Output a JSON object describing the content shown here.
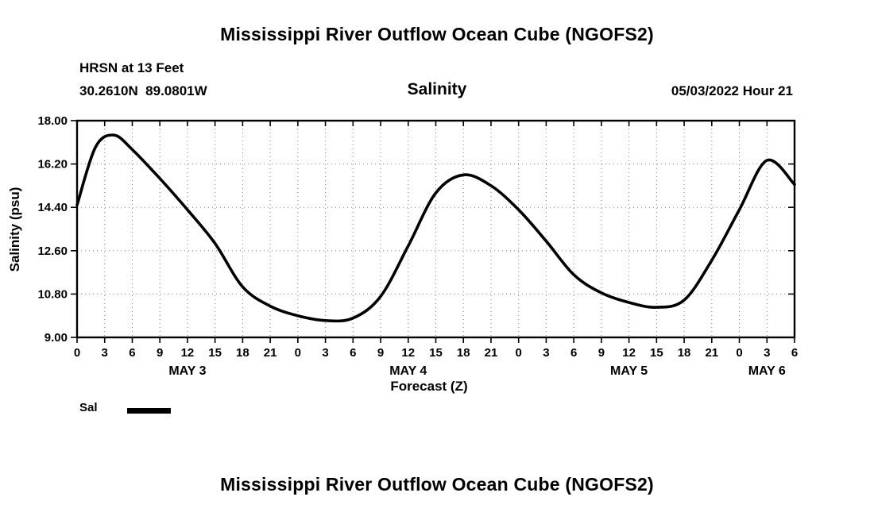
{
  "page": {
    "title_top": "Mississippi River Outflow Ocean Cube (NGOFS2)",
    "title_bottom": "Mississippi River Outflow Ocean Cube (NGOFS2)"
  },
  "header": {
    "station": "HRSN at 13 Feet",
    "coords": "30.2610N  89.0801W",
    "variable": "Salinity",
    "datetime": "05/03/2022 Hour 21"
  },
  "legend": {
    "sal_label": "Sal"
  },
  "chart_data": {
    "type": "line",
    "title": "Salinity",
    "xlabel": "Forecast (Z)",
    "ylabel": "Salinity (psu)",
    "ylim": [
      9.0,
      18.0
    ],
    "yticks": [
      18.0,
      16.2,
      14.4,
      12.6,
      10.8,
      9.0
    ],
    "ytick_labels": [
      "18.00",
      "16.20",
      "14.40",
      "12.60",
      "10.80",
      "9.00"
    ],
    "x_hours_span": 78,
    "xtick_interval": 3,
    "xtick_labels": [
      "0",
      "3",
      "6",
      "9",
      "12",
      "15",
      "18",
      "21",
      "0",
      "3",
      "6",
      "9",
      "12",
      "15",
      "18",
      "21",
      "0",
      "3",
      "6",
      "9",
      "12",
      "15",
      "18",
      "21",
      "0",
      "3",
      "6"
    ],
    "day_labels": [
      {
        "label": "MAY 3",
        "center_hour": 12
      },
      {
        "label": "MAY 4",
        "center_hour": 36
      },
      {
        "label": "MAY 5",
        "center_hour": 60
      },
      {
        "label": "MAY 6",
        "center_hour": 75
      }
    ],
    "grid": true,
    "legend_position": "bottom-left",
    "line_color": "#000000",
    "series": [
      {
        "name": "Sal",
        "x": [
          0,
          2,
          4,
          6,
          9,
          12,
          15,
          18,
          21,
          24,
          27,
          30,
          33,
          36,
          39,
          42,
          45,
          48,
          51,
          54,
          57,
          60,
          63,
          66,
          69,
          72,
          75,
          78
        ],
        "values": [
          14.5,
          16.9,
          17.4,
          16.8,
          15.6,
          14.3,
          12.9,
          11.1,
          10.3,
          9.9,
          9.7,
          9.8,
          10.7,
          12.8,
          15.0,
          15.75,
          15.3,
          14.3,
          13.0,
          11.6,
          10.85,
          10.45,
          10.25,
          10.55,
          12.2,
          14.3,
          16.35,
          15.35
        ]
      }
    ]
  }
}
